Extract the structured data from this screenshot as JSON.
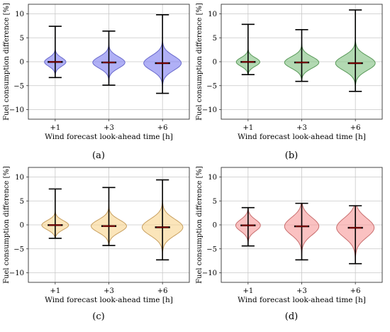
{
  "style": {
    "grid_color": "#c8c8c8",
    "whisker_color": "#000000",
    "median_color": "#8b0000",
    "violin_alpha": 0.6
  },
  "chart_data": [
    {
      "id": "a",
      "caption": "(a)",
      "type": "violin",
      "xlabel": "Wind forecast look-ahead time [h]",
      "ylabel": "Fuel consumption difference [%]",
      "categories": [
        "+1",
        "+3",
        "+6"
      ],
      "ylim": [
        -12,
        12
      ],
      "yticks": [
        -10,
        -5,
        0,
        5,
        10
      ],
      "grid": true,
      "fill": "#7b7bf0",
      "stroke": "#6a6acc",
      "violins": [
        {
          "category": "+1",
          "min": -3.3,
          "max": 7.4,
          "median": -0.05,
          "half_width": 0.2,
          "spread": 0.9
        },
        {
          "category": "+3",
          "min": -4.9,
          "max": 6.4,
          "median": -0.15,
          "half_width": 0.3,
          "spread": 1.2
        },
        {
          "category": "+6",
          "min": -6.6,
          "max": 9.8,
          "median": -0.3,
          "half_width": 0.35,
          "spread": 1.5
        }
      ]
    },
    {
      "id": "b",
      "caption": "(b)",
      "type": "violin",
      "xlabel": "Wind forecast look-ahead time [h]",
      "ylabel": "Fuel consumption difference [%]",
      "categories": [
        "+1",
        "+3",
        "+6"
      ],
      "ylim": [
        -12,
        12
      ],
      "yticks": [
        -10,
        -5,
        0,
        5,
        10
      ],
      "grid": true,
      "fill": "#7fbf7f",
      "stroke": "#5a9a5a",
      "violins": [
        {
          "category": "+1",
          "min": -2.7,
          "max": 7.8,
          "median": -0.05,
          "half_width": 0.22,
          "spread": 0.9
        },
        {
          "category": "+3",
          "min": -4.1,
          "max": 6.7,
          "median": -0.15,
          "half_width": 0.32,
          "spread": 1.2
        },
        {
          "category": "+6",
          "min": -6.2,
          "max": 10.8,
          "median": -0.3,
          "half_width": 0.37,
          "spread": 1.5
        }
      ]
    },
    {
      "id": "c",
      "caption": "(c)",
      "type": "violin",
      "xlabel": "Wind forecast look-ahead time [h]",
      "ylabel": "Fuel consumption difference [%]",
      "categories": [
        "+1",
        "+3",
        "+6"
      ],
      "ylim": [
        -12,
        12
      ],
      "yticks": [
        -10,
        -5,
        0,
        5,
        10
      ],
      "grid": true,
      "fill": "#f9d48c",
      "stroke": "#c8a060",
      "violins": [
        {
          "category": "+1",
          "min": -2.8,
          "max": 7.5,
          "median": -0.05,
          "half_width": 0.25,
          "spread": 0.95
        },
        {
          "category": "+3",
          "min": -4.3,
          "max": 7.8,
          "median": -0.25,
          "half_width": 0.33,
          "spread": 1.3
        },
        {
          "category": "+6",
          "min": -7.3,
          "max": 9.4,
          "median": -0.5,
          "half_width": 0.38,
          "spread": 1.7
        }
      ]
    },
    {
      "id": "d",
      "caption": "(d)",
      "type": "violin",
      "xlabel": "Wind forecast look-ahead time [h]",
      "ylabel": "Fuel consumption difference [%]",
      "categories": [
        "+1",
        "+3",
        "+6"
      ],
      "ylim": [
        -12,
        12
      ],
      "yticks": [
        -10,
        -5,
        0,
        5,
        10
      ],
      "grid": true,
      "fill": "#f79898",
      "stroke": "#c86e6e",
      "violins": [
        {
          "category": "+1",
          "min": -4.4,
          "max": 3.6,
          "median": -0.1,
          "half_width": 0.23,
          "spread": 1.2
        },
        {
          "category": "+3",
          "min": -7.3,
          "max": 4.5,
          "median": -0.3,
          "half_width": 0.32,
          "spread": 1.8
        },
        {
          "category": "+6",
          "min": -8.1,
          "max": 4.0,
          "median": -0.6,
          "half_width": 0.35,
          "spread": 2.0
        }
      ]
    }
  ]
}
